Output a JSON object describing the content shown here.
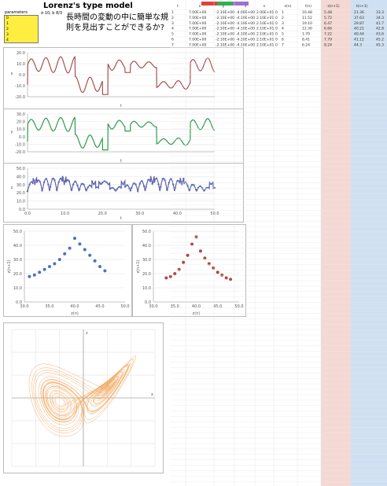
{
  "header": {
    "model_title": "Lorenz's type model",
    "question_line1": "長時間の変動の中に簡単な規",
    "question_line2": "則を見出すことができるか?",
    "param_label": "parameters",
    "params": [
      "0",
      "1",
      "2",
      "3",
      "4"
    ],
    "small_note": "σ 10, b 8/3"
  },
  "colors": {
    "x_series": "#a85050",
    "y_series": "#2e9a4c",
    "z_series": "#6a5aa8",
    "z_points": "#4a72c0",
    "scatter_a": "#4a72c0",
    "scatter_b": "#b04848",
    "attractor": "#f0a050",
    "param_box": "#ffee40",
    "sheet_right_pink": "#f4d8d4",
    "sheet_right_blue": "#cfe0f2"
  },
  "charts": {
    "x_ts": {
      "ylabel": "x",
      "xlabel": "t"
    },
    "y_ts": {
      "ylabel": "y",
      "xlabel": "t"
    },
    "z_ts": {
      "ylabel": "z",
      "xlabel": "t"
    },
    "scatter_a": {
      "xlabel": "z(n)",
      "ylabel": "z(n+1)"
    },
    "scatter_b": {
      "xlabel": "z(n)",
      "ylabel": "z(n+1)"
    },
    "attractor": {
      "xlabel": "x",
      "ylabel": "z"
    }
  },
  "chart_data": [
    {
      "type": "line",
      "name": "x time series",
      "ylim": [
        -20,
        20
      ],
      "yticks": [
        "20.0",
        "10.0",
        "0.0",
        "-10.0",
        "-20.0"
      ]
    },
    {
      "type": "line",
      "name": "y time series",
      "ylim": [
        -30,
        30
      ],
      "yticks": [
        "30.0",
        "20.0",
        "10.0",
        "0.0",
        "-10.0",
        "-20.0"
      ]
    },
    {
      "type": "line",
      "name": "z time series",
      "ylim": [
        0,
        50
      ],
      "yticks": [
        "50.0",
        "40.0",
        "30.0",
        "20.0",
        "10.0",
        "0.0"
      ],
      "xticks": [
        "0.0",
        "10.0",
        "20.0",
        "30.0",
        "40.0",
        "50.0"
      ]
    },
    {
      "type": "scatter",
      "name": "return map a",
      "ylim": [
        0,
        50
      ],
      "xlim": [
        30,
        50
      ],
      "points": [
        [
          31,
          18
        ],
        [
          32,
          19
        ],
        [
          33,
          21
        ],
        [
          34,
          23
        ],
        [
          35,
          25
        ],
        [
          36,
          27
        ],
        [
          37,
          30
        ],
        [
          38,
          34
        ],
        [
          39,
          38
        ],
        [
          40,
          45
        ],
        [
          41,
          41
        ],
        [
          42,
          37
        ],
        [
          43,
          33
        ],
        [
          44,
          29
        ],
        [
          45,
          25
        ],
        [
          46,
          22
        ]
      ]
    },
    {
      "type": "scatter",
      "name": "return map b",
      "ylim": [
        0,
        50
      ],
      "xlim": [
        30,
        50
      ],
      "points": [
        [
          33,
          17
        ],
        [
          34,
          18
        ],
        [
          35,
          20
        ],
        [
          36,
          23
        ],
        [
          37,
          28
        ],
        [
          38,
          33
        ],
        [
          39,
          41
        ],
        [
          40,
          46
        ],
        [
          41,
          36
        ],
        [
          42,
          31
        ],
        [
          43,
          27
        ],
        [
          44,
          24
        ],
        [
          45,
          21
        ],
        [
          46,
          19
        ],
        [
          47,
          17
        ],
        [
          48,
          16
        ]
      ]
    },
    {
      "type": "line",
      "name": "attractor",
      "xlim": [
        -30,
        30
      ],
      "ylim": [
        -30,
        30
      ]
    }
  ],
  "sheet": {
    "headers": [
      "t",
      "x",
      "y",
      "z",
      "n",
      "z(n)",
      "t(n)",
      "z(n+1)",
      "t(n+1)"
    ],
    "top_colors": [
      "#e04040",
      "#30b050",
      "#a070d0"
    ],
    "rows": [
      [
        "1",
        "7.00E+00",
        "-2.10E+00",
        "-4.00E+00",
        "2.00E+01",
        "0",
        "1",
        "10.48",
        "5.48",
        "21.36",
        "33.3"
      ],
      [
        "2",
        "7.00E+00",
        "-2.10E+00",
        "-4.10E+00",
        "2.10E+01",
        "0",
        "2",
        "11.52",
        "5.72",
        "37.63",
        "34.3"
      ],
      [
        "3",
        "7.00E+00",
        "-2.10E+00",
        "-4.10E+00",
        "2.10E+01",
        "0",
        "3",
        "19.10",
        "6.47",
        "29.87",
        "41.7"
      ],
      [
        "4",
        "7.00E+00",
        "-2.10E+00",
        "-4.10E+00",
        "2.10E+01",
        "0",
        "4",
        "12.30",
        "6.66",
        "40.21",
        "42.8"
      ],
      [
        "5",
        "7.00E+00",
        "-2.10E+00",
        "-4.10E+00",
        "2.10E+01",
        "0",
        "5",
        "1.70",
        "7.22",
        "40.44",
        "43.6"
      ],
      [
        "6",
        "7.00E+00",
        "-2.10E+00",
        "-4.10E+00",
        "2.10E+01",
        "0",
        "6",
        "8.41",
        "7.79",
        "41.12",
        "45.2"
      ],
      [
        "7",
        "7.00E+00",
        "-2.10E+00",
        "-4.10E+00",
        "2.10E+01",
        "0",
        "7",
        "6.24",
        "8.24",
        "44.3",
        "45.3"
      ]
    ]
  }
}
